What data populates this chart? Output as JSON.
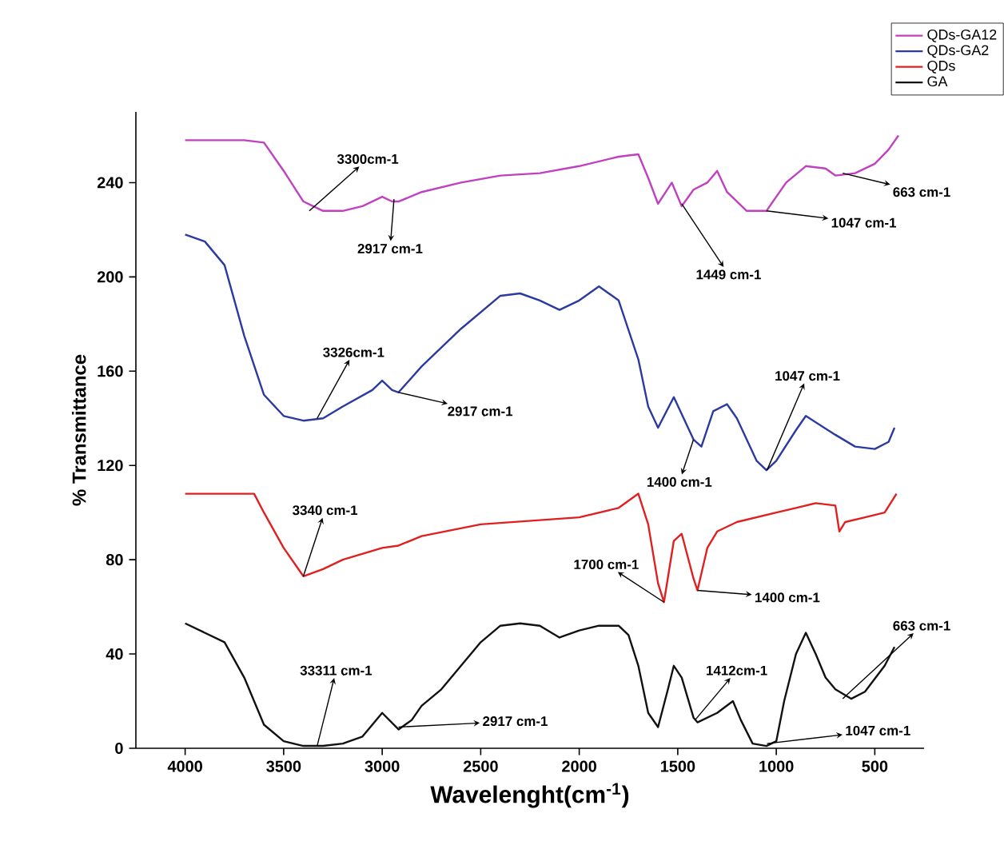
{
  "chart_data": {
    "type": "line",
    "xlabel": "Wavelenght(cm$^{-1}$)",
    "ylabel": "% Transmittance",
    "xlim": [
      4250,
      250
    ],
    "ylim": [
      0,
      270
    ],
    "xticks": [
      4000,
      3500,
      3000,
      2500,
      2000,
      1500,
      1000,
      500
    ],
    "yticks": [
      0,
      40,
      80,
      120,
      160,
      200,
      240
    ],
    "legend": "top right",
    "series": [
      {
        "name": "QDs-GA12",
        "color": "#c040c0",
        "x": [
          4000,
          3700,
          3600,
          3500,
          3400,
          3300,
          3200,
          3100,
          3000,
          2950,
          2917,
          2800,
          2600,
          2400,
          2200,
          2000,
          1800,
          1700,
          1650,
          1600,
          1530,
          1480,
          1420,
          1350,
          1300,
          1250,
          1150,
          1050,
          950,
          850,
          750,
          700,
          600,
          500,
          430,
          380
        ],
        "values": [
          258,
          258,
          257,
          245,
          232,
          228,
          228,
          230,
          234,
          232,
          232,
          236,
          240,
          243,
          244,
          247,
          251,
          252,
          242,
          231,
          240,
          230,
          237,
          240,
          245,
          236,
          228,
          228,
          240,
          247,
          246,
          243,
          244,
          248,
          254,
          260
        ]
      },
      {
        "name": "QDs-GA2",
        "color": "#2b3aa0",
        "x": [
          4000,
          3900,
          3800,
          3700,
          3600,
          3500,
          3400,
          3300,
          3200,
          3050,
          3000,
          2950,
          2917,
          2800,
          2600,
          2400,
          2300,
          2200,
          2100,
          2000,
          1900,
          1800,
          1700,
          1650,
          1600,
          1520,
          1470,
          1420,
          1380,
          1320,
          1250,
          1200,
          1100,
          1050,
          1000,
          900,
          850,
          700,
          600,
          500,
          430,
          400
        ],
        "values": [
          218,
          215,
          205,
          175,
          150,
          141,
          139,
          140,
          145,
          152,
          156,
          152,
          151,
          162,
          178,
          192,
          193,
          190,
          186,
          190,
          196,
          190,
          165,
          145,
          136,
          149,
          140,
          131,
          128,
          143,
          146,
          140,
          122,
          118,
          122,
          135,
          141,
          133,
          128,
          127,
          130,
          136
        ]
      },
      {
        "name": "QDs",
        "color": "#e02020",
        "x": [
          4000,
          3650,
          3600,
          3500,
          3400,
          3300,
          3200,
          3000,
          2917,
          2800,
          2500,
          2000,
          1800,
          1700,
          1650,
          1600,
          1570,
          1520,
          1480,
          1420,
          1400,
          1350,
          1300,
          1200,
          1000,
          900,
          800,
          700,
          680,
          650,
          550,
          450,
          390
        ],
        "values": [
          108,
          108,
          100,
          85,
          73,
          76,
          80,
          85,
          86,
          90,
          95,
          98,
          102,
          108,
          95,
          70,
          62,
          88,
          91,
          72,
          67,
          85,
          92,
          96,
          100,
          102,
          104,
          103,
          92,
          96,
          98,
          100,
          108
        ]
      },
      {
        "name": "GA",
        "color": "#111111",
        "x": [
          4000,
          3800,
          3700,
          3600,
          3500,
          3400,
          3300,
          3200,
          3100,
          3000,
          2917,
          2850,
          2800,
          2700,
          2600,
          2500,
          2400,
          2300,
          2200,
          2100,
          2000,
          1900,
          1800,
          1750,
          1700,
          1650,
          1600,
          1550,
          1520,
          1480,
          1420,
          1400,
          1300,
          1220,
          1180,
          1120,
          1050,
          1000,
          960,
          900,
          850,
          800,
          750,
          700,
          620,
          550,
          450,
          400
        ],
        "values": [
          53,
          45,
          30,
          10,
          3,
          1,
          1,
          2,
          5,
          15,
          8,
          12,
          18,
          25,
          35,
          45,
          52,
          53,
          52,
          47,
          50,
          52,
          52,
          48,
          35,
          15,
          9,
          25,
          35,
          30,
          13,
          11,
          15,
          20,
          12,
          2,
          1,
          3,
          20,
          40,
          49,
          40,
          30,
          25,
          21,
          24,
          35,
          43
        ]
      }
    ],
    "annotations": [
      {
        "text": "3300cm-1",
        "x": 3370,
        "y": 228
      },
      {
        "text": "2917 cm-1",
        "x": 2940,
        "y": 233
      },
      {
        "text": "1449 cm-1",
        "x": 1480,
        "y": 231
      },
      {
        "text": "1047 cm-1",
        "x": 1050,
        "y": 228
      },
      {
        "text": "663 cm-1",
        "x": 663,
        "y": 244
      },
      {
        "text": "3326cm-1",
        "x": 3330,
        "y": 140
      },
      {
        "text": "2917 cm-1",
        "x": 2917,
        "y": 151
      },
      {
        "text": "1400 cm-1",
        "x": 1420,
        "y": 131
      },
      {
        "text": "1047 cm-1",
        "x": 1047,
        "y": 118
      },
      {
        "text": "3340 cm-1",
        "x": 3400,
        "y": 73
      },
      {
        "text": "1700 cm-1",
        "x": 1570,
        "y": 62
      },
      {
        "text": "1400 cm-1",
        "x": 1400,
        "y": 67
      },
      {
        "text": "33311 cm-1",
        "x": 3330,
        "y": 1
      },
      {
        "text": "2917 cm-1",
        "x": 2917,
        "y": 9
      },
      {
        "text": "1412cm-1",
        "x": 1412,
        "y": 12
      },
      {
        "text": "663 cm-1",
        "x": 663,
        "y": 21
      },
      {
        "text": "1047 cm-1",
        "x": 1047,
        "y": 2
      }
    ]
  }
}
